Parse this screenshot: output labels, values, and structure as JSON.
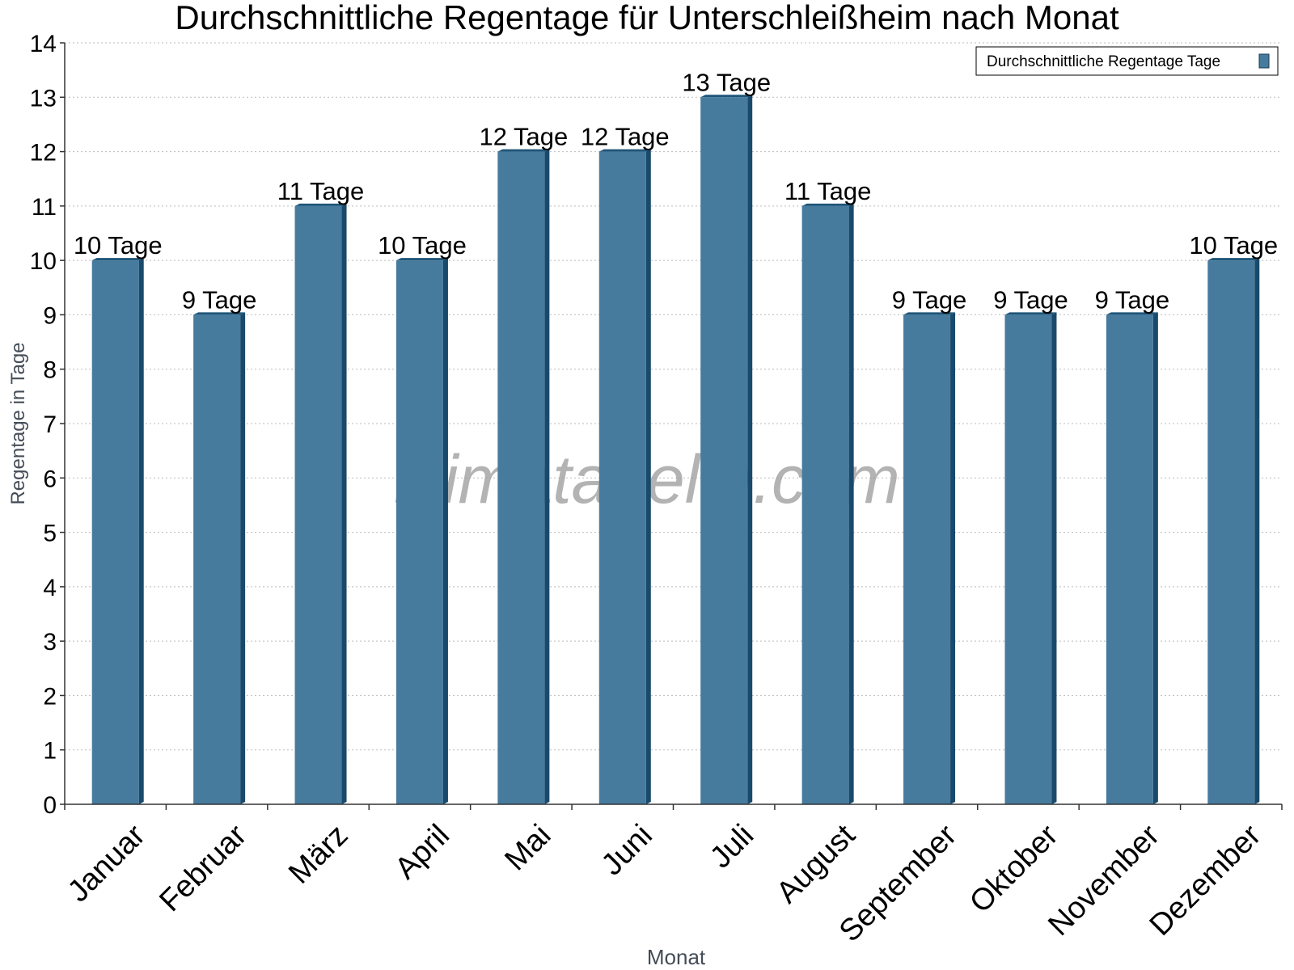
{
  "chart_data": {
    "type": "bar",
    "title": "Durchschnittliche Regentage für Unterschleißheim nach Monat",
    "xlabel": "Monat",
    "ylabel": "Regentage in Tage",
    "categories": [
      "Januar",
      "Februar",
      "März",
      "April",
      "Mai",
      "Juni",
      "Juli",
      "August",
      "September",
      "Oktober",
      "November",
      "Dezember"
    ],
    "series": [
      {
        "name": "Durchschnittliche Regentage Tage",
        "values": [
          10,
          9,
          11,
          10,
          12,
          12,
          13,
          11,
          9,
          9,
          9,
          10
        ],
        "labels": [
          "10 Tage",
          "9 Tage",
          "11 Tage",
          "10 Tage",
          "12 Tage",
          "12 Tage",
          "13 Tage",
          "11 Tage",
          "9 Tage",
          "9 Tage",
          "9 Tage",
          "10 Tage"
        ],
        "color": "#467b9e"
      }
    ],
    "ylim": [
      0,
      14
    ],
    "yticks": [
      0,
      1,
      2,
      3,
      4,
      5,
      6,
      7,
      8,
      9,
      10,
      11,
      12,
      13,
      14
    ],
    "grid": true,
    "legend_position": "top-right",
    "bar_style": "3d",
    "x_tick_rotation": "-45deg"
  },
  "watermark": "klimatabelle.com",
  "colors": {
    "bar_front": "#467b9e",
    "bar_side": "#1a4a6b",
    "bar_top": "#1e5578",
    "grid": "#bbbbbb",
    "axis": "#333333",
    "axis_title": "#444d57",
    "watermark": "#9a9a9a"
  }
}
